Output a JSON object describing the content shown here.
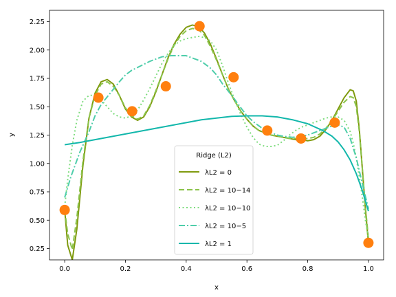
{
  "chart_data": {
    "type": "line",
    "xlabel": "x",
    "ylabel": "y",
    "xlim": [
      -0.05,
      1.05
    ],
    "ylim": [
      0.15,
      2.35
    ],
    "xticks": [
      0.0,
      0.2,
      0.4,
      0.6,
      0.8,
      1.0
    ],
    "xtick_labels": [
      "0.0",
      "0.2",
      "0.4",
      "0.6",
      "0.8",
      "1.0"
    ],
    "yticks": [
      0.25,
      0.5,
      0.75,
      1.0,
      1.25,
      1.5,
      1.75,
      2.0,
      2.25
    ],
    "ytick_labels": [
      "0.25",
      "0.50",
      "0.75",
      "1.00",
      "1.25",
      "1.50",
      "1.75",
      "2.00",
      "2.25"
    ],
    "grid": false,
    "legend": {
      "title": "Ridge (L2)",
      "placement": "lower-center",
      "entries": [
        "λL2 = 0",
        "λL2 = 10−14",
        "λL2 = 10−10",
        "λL2 = 10−5",
        "λL2 = 1"
      ]
    },
    "points": {
      "color": "#ff7f0e",
      "x": [
        0.0,
        0.111,
        0.222,
        0.333,
        0.444,
        0.556,
        0.667,
        0.778,
        0.889,
        1.0
      ],
      "y": [
        0.59,
        1.58,
        1.46,
        1.68,
        2.21,
        1.76,
        1.29,
        1.22,
        1.36,
        0.3
      ]
    },
    "series": [
      {
        "color": "#7f9a0e",
        "dash": "solid",
        "x": [
          0.0,
          0.01,
          0.025,
          0.04,
          0.06,
          0.08,
          0.1,
          0.12,
          0.14,
          0.16,
          0.18,
          0.2,
          0.22,
          0.24,
          0.26,
          0.28,
          0.3,
          0.32,
          0.34,
          0.36,
          0.38,
          0.4,
          0.42,
          0.44,
          0.46,
          0.48,
          0.5,
          0.52,
          0.54,
          0.56,
          0.58,
          0.6,
          0.62,
          0.64,
          0.66,
          0.68,
          0.7,
          0.72,
          0.74,
          0.76,
          0.78,
          0.8,
          0.82,
          0.84,
          0.86,
          0.88,
          0.9,
          0.92,
          0.94,
          0.95,
          0.96,
          0.97,
          0.98,
          0.99,
          1.0
        ],
        "y": [
          0.59,
          0.28,
          0.15,
          0.42,
          0.98,
          1.4,
          1.62,
          1.72,
          1.74,
          1.7,
          1.6,
          1.48,
          1.41,
          1.38,
          1.41,
          1.5,
          1.63,
          1.78,
          1.93,
          2.05,
          2.14,
          2.2,
          2.22,
          2.21,
          2.15,
          2.05,
          1.92,
          1.78,
          1.65,
          1.55,
          1.46,
          1.39,
          1.33,
          1.29,
          1.27,
          1.25,
          1.24,
          1.23,
          1.22,
          1.21,
          1.21,
          1.2,
          1.21,
          1.24,
          1.3,
          1.38,
          1.48,
          1.58,
          1.65,
          1.64,
          1.55,
          1.3,
          0.95,
          0.6,
          0.3
        ]
      },
      {
        "color": "#8bc34a",
        "dash": "dashed",
        "x": [
          0.0,
          0.01,
          0.025,
          0.04,
          0.06,
          0.08,
          0.1,
          0.12,
          0.14,
          0.16,
          0.18,
          0.2,
          0.22,
          0.24,
          0.26,
          0.28,
          0.3,
          0.32,
          0.34,
          0.36,
          0.38,
          0.4,
          0.42,
          0.44,
          0.46,
          0.48,
          0.5,
          0.52,
          0.54,
          0.56,
          0.58,
          0.6,
          0.62,
          0.64,
          0.66,
          0.68,
          0.7,
          0.72,
          0.74,
          0.76,
          0.78,
          0.8,
          0.82,
          0.84,
          0.86,
          0.88,
          0.9,
          0.92,
          0.94,
          0.95,
          0.96,
          0.97,
          0.98,
          0.99,
          1.0
        ],
        "y": [
          0.59,
          0.38,
          0.24,
          0.52,
          1.02,
          1.4,
          1.6,
          1.7,
          1.72,
          1.68,
          1.6,
          1.49,
          1.42,
          1.39,
          1.42,
          1.51,
          1.64,
          1.78,
          1.92,
          2.04,
          2.12,
          2.17,
          2.19,
          2.18,
          2.13,
          2.03,
          1.91,
          1.78,
          1.65,
          1.55,
          1.46,
          1.39,
          1.33,
          1.29,
          1.27,
          1.25,
          1.24,
          1.23,
          1.22,
          1.22,
          1.22,
          1.22,
          1.23,
          1.26,
          1.31,
          1.38,
          1.46,
          1.54,
          1.59,
          1.58,
          1.5,
          1.28,
          0.95,
          0.62,
          0.34
        ]
      },
      {
        "color": "#7ddc7d",
        "dash": "dotted",
        "x": [
          0.0,
          0.01,
          0.025,
          0.04,
          0.06,
          0.08,
          0.1,
          0.12,
          0.14,
          0.16,
          0.18,
          0.2,
          0.22,
          0.24,
          0.26,
          0.28,
          0.3,
          0.32,
          0.34,
          0.36,
          0.38,
          0.4,
          0.42,
          0.44,
          0.46,
          0.48,
          0.5,
          0.52,
          0.54,
          0.56,
          0.58,
          0.6,
          0.62,
          0.64,
          0.66,
          0.68,
          0.7,
          0.72,
          0.74,
          0.76,
          0.78,
          0.8,
          0.82,
          0.84,
          0.86,
          0.88,
          0.9,
          0.92,
          0.94,
          0.95,
          0.96,
          0.97,
          0.98,
          0.99,
          1.0
        ],
        "y": [
          0.62,
          0.86,
          1.16,
          1.38,
          1.55,
          1.6,
          1.6,
          1.56,
          1.5,
          1.44,
          1.41,
          1.4,
          1.42,
          1.47,
          1.56,
          1.66,
          1.77,
          1.88,
          1.97,
          2.04,
          2.08,
          2.1,
          2.11,
          2.12,
          2.11,
          2.08,
          2.0,
          1.86,
          1.7,
          1.56,
          1.43,
          1.32,
          1.23,
          1.17,
          1.15,
          1.15,
          1.16,
          1.2,
          1.25,
          1.29,
          1.32,
          1.34,
          1.36,
          1.38,
          1.4,
          1.41,
          1.41,
          1.38,
          1.28,
          1.18,
          1.05,
          0.88,
          0.7,
          0.5,
          0.34
        ]
      },
      {
        "color": "#4ecdaa",
        "dash": "dashdot",
        "x": [
          0.0,
          0.02,
          0.05,
          0.08,
          0.1,
          0.12,
          0.15,
          0.18,
          0.2,
          0.22,
          0.25,
          0.28,
          0.3,
          0.32,
          0.35,
          0.38,
          0.4,
          0.42,
          0.45,
          0.48,
          0.5,
          0.52,
          0.55,
          0.58,
          0.6,
          0.62,
          0.65,
          0.68,
          0.7,
          0.72,
          0.75,
          0.78,
          0.8,
          0.82,
          0.85,
          0.88,
          0.9,
          0.92,
          0.94,
          0.96,
          0.98,
          1.0
        ],
        "y": [
          0.7,
          0.88,
          1.1,
          1.28,
          1.42,
          1.52,
          1.62,
          1.72,
          1.78,
          1.82,
          1.86,
          1.9,
          1.92,
          1.94,
          1.95,
          1.95,
          1.95,
          1.93,
          1.9,
          1.84,
          1.78,
          1.7,
          1.6,
          1.49,
          1.42,
          1.37,
          1.31,
          1.27,
          1.25,
          1.24,
          1.23,
          1.24,
          1.25,
          1.27,
          1.3,
          1.33,
          1.34,
          1.32,
          1.22,
          1.05,
          0.82,
          0.6
        ]
      },
      {
        "color": "#12b7ab",
        "dash": "solid",
        "x": [
          0.0,
          0.05,
          0.1,
          0.15,
          0.2,
          0.25,
          0.3,
          0.35,
          0.4,
          0.45,
          0.5,
          0.55,
          0.6,
          0.65,
          0.7,
          0.75,
          0.8,
          0.85,
          0.88,
          0.9,
          0.92,
          0.94,
          0.96,
          0.98,
          1.0
        ],
        "y": [
          1.165,
          1.185,
          1.21,
          1.235,
          1.26,
          1.285,
          1.31,
          1.335,
          1.36,
          1.385,
          1.4,
          1.415,
          1.42,
          1.42,
          1.41,
          1.385,
          1.35,
          1.29,
          1.24,
          1.19,
          1.12,
          1.03,
          0.91,
          0.76,
          0.58
        ]
      }
    ]
  }
}
